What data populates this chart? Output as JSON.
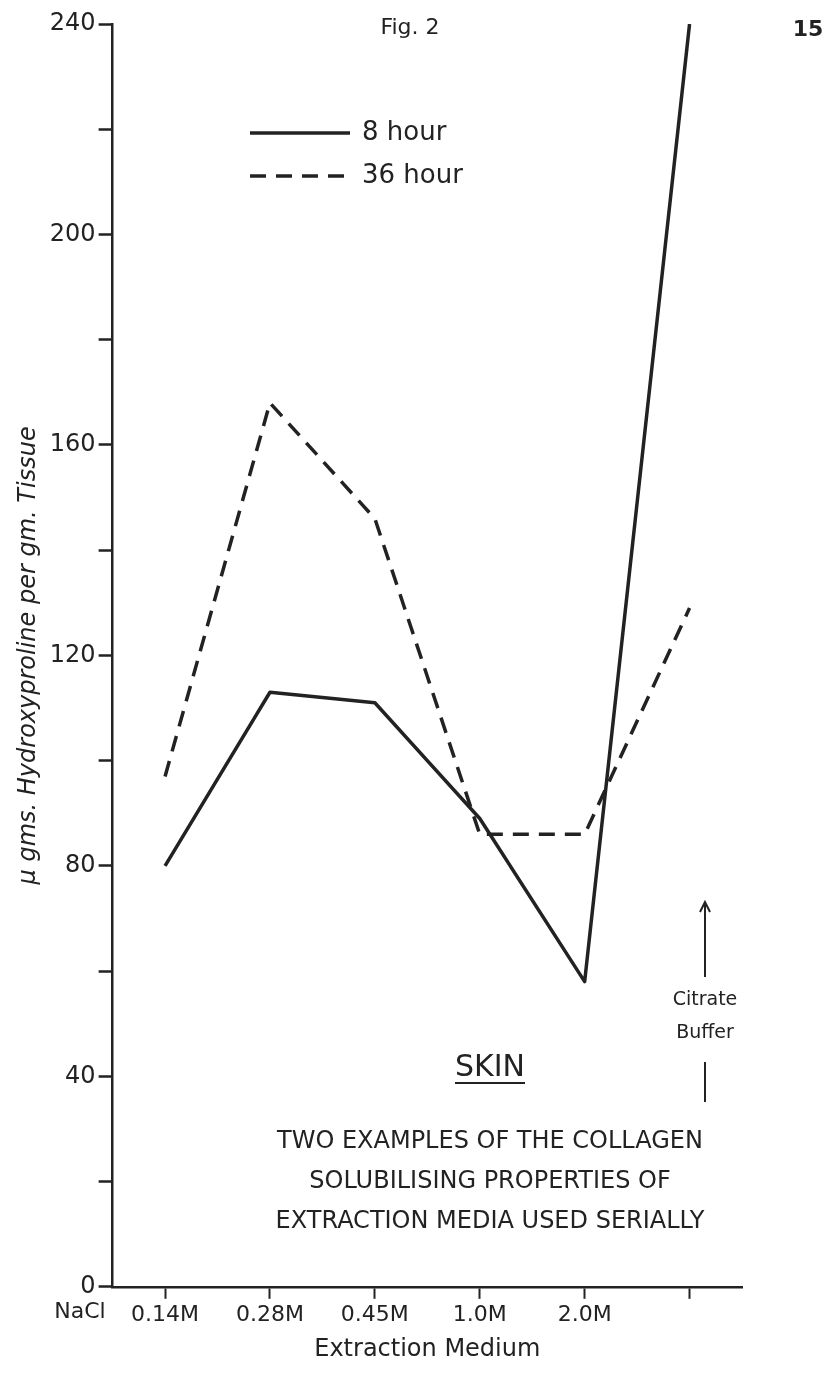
{
  "chart_data": {
    "type": "line",
    "title": "Fig. 2",
    "xlabel": "Extraction Medium",
    "ylabel": "μ gms. Hydroxyproline per gm. Tissue",
    "categories": [
      "0.14M",
      "0.28M",
      "0.45M",
      "1.0M",
      "2.0M",
      null
    ],
    "series": [
      {
        "name": "8 hour",
        "color": "#222222",
        "line_style": "solid",
        "values": [
          80,
          113,
          111,
          89,
          58,
          240
        ]
      },
      {
        "name": "36 hour",
        "color": "#222222",
        "line_style": "dashed",
        "values": [
          97,
          168,
          146,
          86,
          86,
          129
        ]
      }
    ],
    "ylim": [
      0,
      240
    ],
    "yticks": [
      0,
      {
        "value": 20,
        "label": null
      },
      40,
      {
        "value": 60,
        "label": null
      },
      80,
      {
        "value": 100,
        "label": null
      },
      120,
      {
        "value": 140,
        "label": null
      },
      160,
      {
        "value": 180,
        "label": null
      },
      200,
      {
        "value": 220,
        "label": null
      },
      240
    ],
    "grid": false,
    "legend": "top left",
    "marker": "none",
    "annotations": [
      "15",
      "NaCl",
      "SKIN",
      "TWO EXAMPLES OF THE COLLAGEN",
      "SOLUBILISING PROPERTIES OF",
      "EXTRACTION MEDIA USED SERIALLY",
      "Citrate",
      "Buffer"
    ]
  }
}
